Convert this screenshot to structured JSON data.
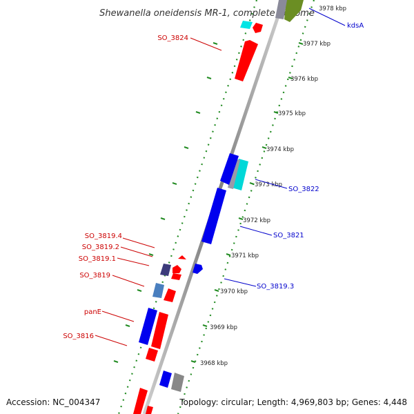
{
  "title": "Shewanella oneidensis MR-1, complete genome",
  "footer": {
    "accession": "Accession: NC_004347",
    "topology": "Topology: circular; Length: 4,969,803 bp; Genes: 4,448"
  },
  "ticks": [
    "3978 kbp",
    "3977 kbp",
    "3976 kbp",
    "3975 kbp",
    "3974 kbp",
    "3973 kbp",
    "3972 kbp",
    "3971 kbp",
    "3970 kbp",
    "3969 kbp",
    "3968 kbp"
  ],
  "gene_labels": {
    "kdsA": "kdsA",
    "so3824": "SO_3824",
    "so3822": "SO_3822",
    "so3821": "SO_3821",
    "so3819_4": "SO_3819.4",
    "so3819_2": "SO_3819.2",
    "so3819_1": "SO_3819.1",
    "so3819": "SO_3819",
    "so3819_3": "SO_3819.3",
    "panE": "panE",
    "so3816": "SO_3816"
  },
  "colors": {
    "forward_label": "#0000cc",
    "reverse_label": "#cc0000",
    "ruler": "#228b22",
    "backbone": "#888888",
    "gene_red": "#ff0000",
    "gene_blue": "#0000ee",
    "gene_cyan": "#00dddd",
    "gene_gray": "#888888",
    "gene_purple": "#3b3b7a",
    "gene_steelblue": "#4a7fbf",
    "gene_olive": "#6b8e23"
  }
}
